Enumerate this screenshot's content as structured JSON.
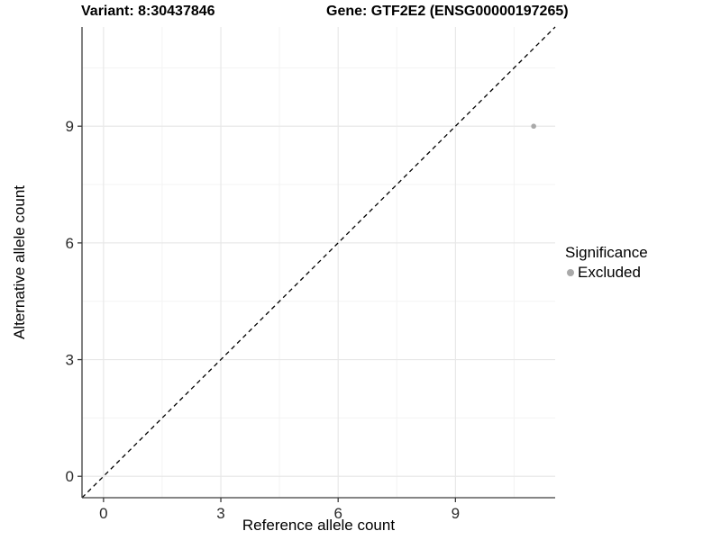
{
  "chart_data": {
    "type": "scatter",
    "titles": {
      "left": "Variant: 8:30437846",
      "right": "Gene: GTF2E2 (ENSG00000197265)"
    },
    "xlabel": "Reference allele count",
    "ylabel": "Alternative allele count",
    "xlim": [
      -0.55,
      11.55
    ],
    "ylim": [
      -0.55,
      11.55
    ],
    "x_ticks": [
      0,
      3,
      6,
      9
    ],
    "y_ticks": [
      0,
      3,
      6,
      9
    ],
    "x_minor_ticks": [
      1.5,
      4.5,
      7.5,
      10.5
    ],
    "y_minor_ticks": [
      1.5,
      4.5,
      7.5,
      10.5
    ],
    "grid": "major+minor",
    "identity_line": {
      "style": "dashed",
      "slope": 1,
      "intercept": 0,
      "color": "#000000"
    },
    "series": [
      {
        "name": "Excluded",
        "color": "#a9a9a9",
        "points": [
          {
            "x": 11,
            "y": 9
          }
        ]
      }
    ],
    "legend": {
      "position": "right",
      "title": "Significance",
      "items": [
        {
          "label": "Excluded",
          "color": "#a9a9a9"
        }
      ]
    },
    "colors": {
      "grid_major": "#e8e8e8",
      "grid_minor": "#f3f3f3",
      "axis_line": "#3c3c3c",
      "tick_label": "#2b2b2b",
      "background": "#ffffff"
    }
  }
}
